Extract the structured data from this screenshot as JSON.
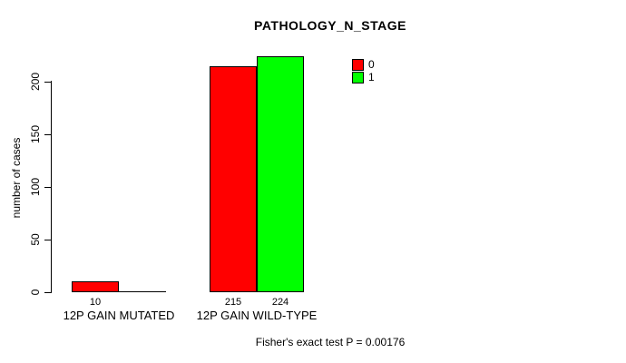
{
  "chart_data": {
    "type": "bar",
    "title": "PATHOLOGY_N_STAGE",
    "ylabel": "number of cases",
    "xlabel": "",
    "yticks": [
      0,
      50,
      100,
      150,
      200
    ],
    "ylim": [
      0,
      232
    ],
    "grid": false,
    "legend_position": "top-right",
    "categories": [
      "12P GAIN MUTATED",
      "12P GAIN WILD-TYPE"
    ],
    "series": [
      {
        "name": "0",
        "color": "#ff0000",
        "values": [
          10,
          215
        ]
      },
      {
        "name": "1",
        "color": "#00ff00",
        "values": [
          0,
          224
        ]
      }
    ],
    "bar_value_labels": [
      [
        "10",
        ""
      ],
      [
        "215",
        "224"
      ]
    ],
    "legend": {
      "entries": [
        {
          "label": "0",
          "color": "#ff0000"
        },
        {
          "label": "1",
          "color": "#00ff00"
        }
      ]
    },
    "annotation": "Fisher's exact test P = 0.00176"
  }
}
